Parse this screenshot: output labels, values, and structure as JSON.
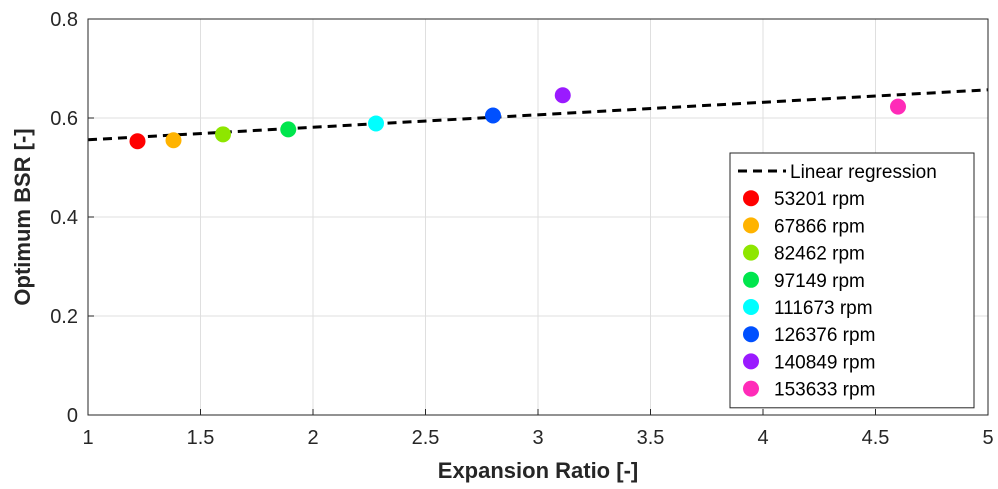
{
  "chart_data": {
    "type": "scatter",
    "xlabel": "Expansion Ratio [-]",
    "ylabel": "Optimum BSR [-]",
    "xlim": [
      1,
      5
    ],
    "ylim": [
      0,
      0.8
    ],
    "x_ticks": [
      1,
      1.5,
      2,
      2.5,
      3,
      3.5,
      4,
      4.5,
      5
    ],
    "y_ticks": [
      0,
      0.2,
      0.4,
      0.6,
      0.8
    ],
    "x_tick_labels": [
      "1",
      "1.5",
      "2",
      "2.5",
      "3",
      "3.5",
      "4",
      "4.5",
      "5"
    ],
    "y_tick_labels": [
      "0",
      "0.2",
      "0.4",
      "0.6",
      "0.8"
    ],
    "grid": true,
    "legend_position": "bottom-right",
    "regression": {
      "name": "Linear regression",
      "style": "dashed",
      "color": "#000000",
      "x": [
        1,
        5
      ],
      "y": [
        0.556,
        0.657
      ]
    },
    "series": [
      {
        "name": "53201 rpm",
        "color": "#ff0000",
        "x": 1.22,
        "y": 0.553
      },
      {
        "name": "67866 rpm",
        "color": "#ffb300",
        "x": 1.38,
        "y": 0.555
      },
      {
        "name": "82462 rpm",
        "color": "#8ee600",
        "x": 1.6,
        "y": 0.567
      },
      {
        "name": "97149 rpm",
        "color": "#00e64d",
        "x": 1.89,
        "y": 0.577
      },
      {
        "name": "111673 rpm",
        "color": "#00ffff",
        "x": 2.28,
        "y": 0.589
      },
      {
        "name": "126376 rpm",
        "color": "#0050ff",
        "x": 2.8,
        "y": 0.605
      },
      {
        "name": "140849 rpm",
        "color": "#9a1aff",
        "x": 3.11,
        "y": 0.646
      },
      {
        "name": "153633 rpm",
        "color": "#ff2bb8",
        "x": 4.6,
        "y": 0.623
      }
    ]
  }
}
